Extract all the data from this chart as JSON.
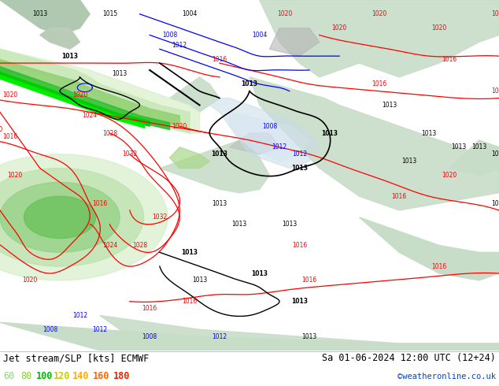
{
  "title_left": "Jet stream/SLP [kts] ECMWF",
  "title_right": "Sa 01-06-2024 12:00 UTC (12+24)",
  "credit": "©weatheronline.co.uk",
  "legend_values": [
    "60",
    "80",
    "100",
    "120",
    "140",
    "160",
    "180"
  ],
  "legend_colors": [
    "#99cc88",
    "#88cc44",
    "#00bb00",
    "#cccc00",
    "#ffaa00",
    "#ff6600",
    "#ee2200"
  ],
  "bg_color": "#ffffff",
  "figwidth": 6.34,
  "figheight": 4.9,
  "dpi": 100,
  "map_bg": "#f0ede8",
  "land_color": "#c8ddc8",
  "land_dark": "#a0c0a0",
  "ocean_color": "#dce8dc",
  "jet_green_light": "#c0e8b0",
  "jet_green_mid": "#80d060",
  "jet_green_dark": "#20a820",
  "jet_green_core": "#008800",
  "blue_low": "#b8d4e8",
  "label_font": 5.5
}
